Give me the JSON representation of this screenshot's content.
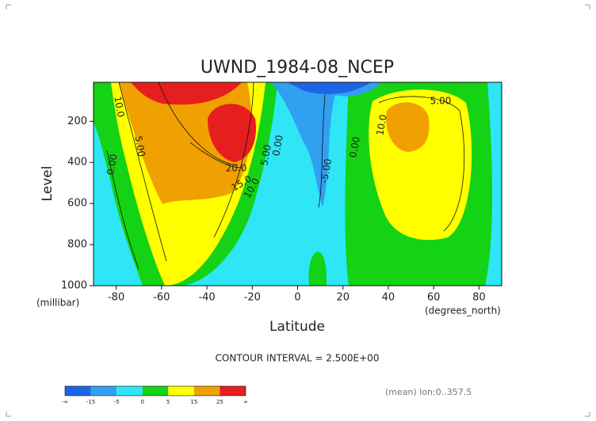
{
  "chart_data": {
    "type": "contour",
    "title": "UWND_1984-08_NCEP",
    "x_label": "Latitude",
    "y_label": "Level",
    "x_unit": "(degrees_north)",
    "y_unit": "(millibar)",
    "xlim": [
      -90,
      90
    ],
    "ylim": [
      1000,
      10
    ],
    "xticks": [
      -80,
      -60,
      -40,
      -20,
      0,
      20,
      40,
      60,
      80
    ],
    "yticks": [
      200,
      400,
      600,
      800,
      1000
    ],
    "contour_interval": "CONTOUR INTERVAL = 2.500E+00",
    "note": "(mean) lon:0..357.5",
    "contour_labels": [
      {
        "value": 10,
        "label": "10.0"
      },
      {
        "value": 5,
        "label": "5.00"
      },
      {
        "value": 0,
        "label": "0.00"
      },
      {
        "value": 20,
        "label": "20.0"
      },
      {
        "value": 15,
        "label": "15.0"
      },
      {
        "value": 10,
        "label": "10.0"
      },
      {
        "value": 5,
        "label": "5.00"
      },
      {
        "value": 0,
        "label": "0.00"
      },
      {
        "value": -5,
        "label": "-5.00"
      },
      {
        "value": 0,
        "label": "0.00"
      },
      {
        "value": 10,
        "label": "10.0"
      },
      {
        "value": 5,
        "label": "5.00"
      }
    ],
    "colorbar": {
      "boundaries": [
        "-∞",
        -15,
        -5,
        0,
        5,
        15,
        25,
        "∞"
      ],
      "colors": [
        "#1e64e6",
        "#32a0f0",
        "#2ee6f5",
        "#14d214",
        "#ffff00",
        "#f0a000",
        "#e61e1e"
      ]
    }
  }
}
